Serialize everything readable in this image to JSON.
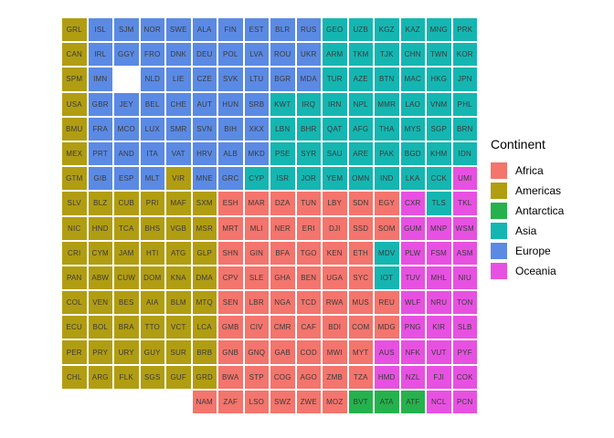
{
  "chart_data": {
    "type": "heatmap",
    "subtype": "tile-grid-world-map",
    "title": "",
    "legend_title": "Continent",
    "legend_position": "right",
    "grid": {
      "rows": 16,
      "cols": 16
    },
    "continents": [
      {
        "key": "AF",
        "label": "Africa",
        "color": "#F3756D"
      },
      {
        "key": "AM",
        "label": "Americas",
        "color": "#B19D12"
      },
      {
        "key": "AN",
        "label": "Antarctica",
        "color": "#25B24C"
      },
      {
        "key": "AS",
        "label": "Asia",
        "color": "#15B6B1"
      },
      {
        "key": "EU",
        "label": "Europe",
        "color": "#5B8AE4"
      },
      {
        "key": "OC",
        "label": "Oceania",
        "color": "#E751E1"
      }
    ],
    "grid_rows": [
      [
        [
          "GRL",
          "AM"
        ],
        [
          "ISL",
          "EU"
        ],
        [
          "SJM",
          "EU"
        ],
        [
          "NOR",
          "EU"
        ],
        [
          "SWE",
          "EU"
        ],
        [
          "ALA",
          "EU"
        ],
        [
          "FIN",
          "EU"
        ],
        [
          "EST",
          "EU"
        ],
        [
          "BLR",
          "EU"
        ],
        [
          "RUS",
          "EU"
        ],
        [
          "GEO",
          "AS"
        ],
        [
          "UZB",
          "AS"
        ],
        [
          "KGZ",
          "AS"
        ],
        [
          "KAZ",
          "AS"
        ],
        [
          "MNG",
          "AS"
        ],
        [
          "PRK",
          "AS"
        ]
      ],
      [
        [
          "CAN",
          "AM"
        ],
        [
          "IRL",
          "EU"
        ],
        [
          "GGY",
          "EU"
        ],
        [
          "FRO",
          "EU"
        ],
        [
          "DNK",
          "EU"
        ],
        [
          "DEU",
          "EU"
        ],
        [
          "POL",
          "EU"
        ],
        [
          "LVA",
          "EU"
        ],
        [
          "ROU",
          "EU"
        ],
        [
          "UKR",
          "EU"
        ],
        [
          "ARM",
          "AS"
        ],
        [
          "TKM",
          "AS"
        ],
        [
          "TJK",
          "AS"
        ],
        [
          "CHN",
          "AS"
        ],
        [
          "TWN",
          "AS"
        ],
        [
          "KOR",
          "AS"
        ]
      ],
      [
        [
          "SPM",
          "AM"
        ],
        [
          "IMN",
          "EU"
        ],
        null,
        [
          "NLD",
          "EU"
        ],
        [
          "LIE",
          "EU"
        ],
        [
          "CZE",
          "EU"
        ],
        [
          "SVK",
          "EU"
        ],
        [
          "LTU",
          "EU"
        ],
        [
          "BGR",
          "EU"
        ],
        [
          "MDA",
          "EU"
        ],
        [
          "TUR",
          "AS"
        ],
        [
          "AZE",
          "AS"
        ],
        [
          "BTN",
          "AS"
        ],
        [
          "MAC",
          "AS"
        ],
        [
          "HKG",
          "AS"
        ],
        [
          "JPN",
          "AS"
        ]
      ],
      [
        [
          "USA",
          "AM"
        ],
        [
          "GBR",
          "EU"
        ],
        [
          "JEY",
          "EU"
        ],
        [
          "BEL",
          "EU"
        ],
        [
          "CHE",
          "EU"
        ],
        [
          "AUT",
          "EU"
        ],
        [
          "HUN",
          "EU"
        ],
        [
          "SRB",
          "EU"
        ],
        [
          "KWT",
          "AS"
        ],
        [
          "IRQ",
          "AS"
        ],
        [
          "IRN",
          "AS"
        ],
        [
          "NPL",
          "AS"
        ],
        [
          "MMR",
          "AS"
        ],
        [
          "LAO",
          "AS"
        ],
        [
          "VNM",
          "AS"
        ],
        [
          "PHL",
          "AS"
        ]
      ],
      [
        [
          "BMU",
          "AM"
        ],
        [
          "FRA",
          "EU"
        ],
        [
          "MCO",
          "EU"
        ],
        [
          "LUX",
          "EU"
        ],
        [
          "SMR",
          "EU"
        ],
        [
          "SVN",
          "EU"
        ],
        [
          "BIH",
          "EU"
        ],
        [
          "XKX",
          "EU"
        ],
        [
          "LBN",
          "AS"
        ],
        [
          "BHR",
          "AS"
        ],
        [
          "QAT",
          "AS"
        ],
        [
          "AFG",
          "AS"
        ],
        [
          "THA",
          "AS"
        ],
        [
          "MYS",
          "AS"
        ],
        [
          "SGP",
          "AS"
        ],
        [
          "BRN",
          "AS"
        ]
      ],
      [
        [
          "MEX",
          "AM"
        ],
        [
          "PRT",
          "EU"
        ],
        [
          "AND",
          "EU"
        ],
        [
          "ITA",
          "EU"
        ],
        [
          "VAT",
          "EU"
        ],
        [
          "HRV",
          "EU"
        ],
        [
          "ALB",
          "EU"
        ],
        [
          "MKD",
          "EU"
        ],
        [
          "PSE",
          "AS"
        ],
        [
          "SYR",
          "AS"
        ],
        [
          "SAU",
          "AS"
        ],
        [
          "ARE",
          "AS"
        ],
        [
          "PAK",
          "AS"
        ],
        [
          "BGD",
          "AS"
        ],
        [
          "KHM",
          "AS"
        ],
        [
          "IDN",
          "AS"
        ]
      ],
      [
        [
          "GTM",
          "AM"
        ],
        [
          "GIB",
          "EU"
        ],
        [
          "ESP",
          "EU"
        ],
        [
          "MLT",
          "EU"
        ],
        [
          "VIR",
          "AM"
        ],
        [
          "MNE",
          "EU"
        ],
        [
          "GRC",
          "EU"
        ],
        [
          "CYP",
          "AS"
        ],
        [
          "ISR",
          "AS"
        ],
        [
          "JOR",
          "AS"
        ],
        [
          "YEM",
          "AS"
        ],
        [
          "OMN",
          "AS"
        ],
        [
          "IND",
          "AS"
        ],
        [
          "LKA",
          "AS"
        ],
        [
          "CCK",
          "AS"
        ],
        [
          "UMI",
          "OC"
        ]
      ],
      [
        [
          "SLV",
          "AM"
        ],
        [
          "BLZ",
          "AM"
        ],
        [
          "CUB",
          "AM"
        ],
        [
          "PRI",
          "AM"
        ],
        [
          "MAF",
          "AM"
        ],
        [
          "SXM",
          "AM"
        ],
        [
          "ESH",
          "AF"
        ],
        [
          "MAR",
          "AF"
        ],
        [
          "DZA",
          "AF"
        ],
        [
          "TUN",
          "AF"
        ],
        [
          "LBY",
          "AF"
        ],
        [
          "SDN",
          "AF"
        ],
        [
          "EGY",
          "AF"
        ],
        [
          "CXR",
          "OC"
        ],
        [
          "TLS",
          "AS"
        ],
        [
          "TKL",
          "OC"
        ]
      ],
      [
        [
          "NIC",
          "AM"
        ],
        [
          "HND",
          "AM"
        ],
        [
          "TCA",
          "AM"
        ],
        [
          "BHS",
          "AM"
        ],
        [
          "VGB",
          "AM"
        ],
        [
          "MSR",
          "AM"
        ],
        [
          "MRT",
          "AF"
        ],
        [
          "MLI",
          "AF"
        ],
        [
          "NER",
          "AF"
        ],
        [
          "ERI",
          "AF"
        ],
        [
          "DJI",
          "AF"
        ],
        [
          "SSD",
          "AF"
        ],
        [
          "SOM",
          "AF"
        ],
        [
          "GUM",
          "OC"
        ],
        [
          "MNP",
          "OC"
        ],
        [
          "WSM",
          "OC"
        ]
      ],
      [
        [
          "CRI",
          "AM"
        ],
        [
          "CYM",
          "AM"
        ],
        [
          "JAM",
          "AM"
        ],
        [
          "HTI",
          "AM"
        ],
        [
          "ATG",
          "AM"
        ],
        [
          "GLP",
          "AM"
        ],
        [
          "SHN",
          "AF"
        ],
        [
          "GIN",
          "AF"
        ],
        [
          "BFA",
          "AF"
        ],
        [
          "TGO",
          "AF"
        ],
        [
          "KEN",
          "AF"
        ],
        [
          "ETH",
          "AF"
        ],
        [
          "MDV",
          "AS"
        ],
        [
          "PLW",
          "OC"
        ],
        [
          "FSM",
          "OC"
        ],
        [
          "ASM",
          "OC"
        ]
      ],
      [
        [
          "PAN",
          "AM"
        ],
        [
          "ABW",
          "AM"
        ],
        [
          "CUW",
          "AM"
        ],
        [
          "DOM",
          "AM"
        ],
        [
          "KNA",
          "AM"
        ],
        [
          "DMA",
          "AM"
        ],
        [
          "CPV",
          "AF"
        ],
        [
          "SLE",
          "AF"
        ],
        [
          "GHA",
          "AF"
        ],
        [
          "BEN",
          "AF"
        ],
        [
          "UGA",
          "AF"
        ],
        [
          "SYC",
          "AF"
        ],
        [
          "IOT",
          "AS"
        ],
        [
          "TUV",
          "OC"
        ],
        [
          "MHL",
          "OC"
        ],
        [
          "NIU",
          "OC"
        ]
      ],
      [
        [
          "COL",
          "AM"
        ],
        [
          "VEN",
          "AM"
        ],
        [
          "BES",
          "AM"
        ],
        [
          "AIA",
          "AM"
        ],
        [
          "BLM",
          "AM"
        ],
        [
          "MTQ",
          "AM"
        ],
        [
          "SEN",
          "AF"
        ],
        [
          "LBR",
          "AF"
        ],
        [
          "NGA",
          "AF"
        ],
        [
          "TCD",
          "AF"
        ],
        [
          "RWA",
          "AF"
        ],
        [
          "MUS",
          "AF"
        ],
        [
          "REU",
          "AF"
        ],
        [
          "WLF",
          "OC"
        ],
        [
          "NRU",
          "OC"
        ],
        [
          "TON",
          "OC"
        ]
      ],
      [
        [
          "ECU",
          "AM"
        ],
        [
          "BOL",
          "AM"
        ],
        [
          "BRA",
          "AM"
        ],
        [
          "TTO",
          "AM"
        ],
        [
          "VCT",
          "AM"
        ],
        [
          "LCA",
          "AM"
        ],
        [
          "GMB",
          "AF"
        ],
        [
          "CIV",
          "AF"
        ],
        [
          "CMR",
          "AF"
        ],
        [
          "CAF",
          "AF"
        ],
        [
          "BDI",
          "AF"
        ],
        [
          "COM",
          "AF"
        ],
        [
          "MDG",
          "AF"
        ],
        [
          "PNG",
          "OC"
        ],
        [
          "KIR",
          "OC"
        ],
        [
          "SLB",
          "OC"
        ]
      ],
      [
        [
          "PER",
          "AM"
        ],
        [
          "PRY",
          "AM"
        ],
        [
          "URY",
          "AM"
        ],
        [
          "GUY",
          "AM"
        ],
        [
          "SUR",
          "AM"
        ],
        [
          "BRB",
          "AM"
        ],
        [
          "GNB",
          "AF"
        ],
        [
          "GNQ",
          "AF"
        ],
        [
          "GAB",
          "AF"
        ],
        [
          "COD",
          "AF"
        ],
        [
          "MWI",
          "AF"
        ],
        [
          "MYT",
          "AF"
        ],
        [
          "AUS",
          "OC"
        ],
        [
          "NFK",
          "OC"
        ],
        [
          "VUT",
          "OC"
        ],
        [
          "PYF",
          "OC"
        ]
      ],
      [
        [
          "CHL",
          "AM"
        ],
        [
          "ARG",
          "AM"
        ],
        [
          "FLK",
          "AM"
        ],
        [
          "SGS",
          "AM"
        ],
        [
          "GUF",
          "AM"
        ],
        [
          "GRD",
          "AM"
        ],
        [
          "BWA",
          "AF"
        ],
        [
          "STP",
          "AF"
        ],
        [
          "COG",
          "AF"
        ],
        [
          "AGO",
          "AF"
        ],
        [
          "ZMB",
          "AF"
        ],
        [
          "TZA",
          "AF"
        ],
        [
          "HMD",
          "OC"
        ],
        [
          "NZL",
          "OC"
        ],
        [
          "FJI",
          "OC"
        ],
        [
          "COK",
          "OC"
        ]
      ],
      [
        null,
        null,
        null,
        null,
        null,
        [
          "NAM",
          "AF"
        ],
        [
          "ZAF",
          "AF"
        ],
        [
          "LSO",
          "AF"
        ],
        [
          "SWZ",
          "AF"
        ],
        [
          "ZWE",
          "AF"
        ],
        [
          "MOZ",
          "AF"
        ],
        [
          "BVT",
          "AN"
        ],
        [
          "ATA",
          "AN"
        ],
        [
          "ATF",
          "AN"
        ],
        [
          "NCL",
          "OC"
        ],
        [
          "PCN",
          "OC"
        ]
      ]
    ]
  }
}
